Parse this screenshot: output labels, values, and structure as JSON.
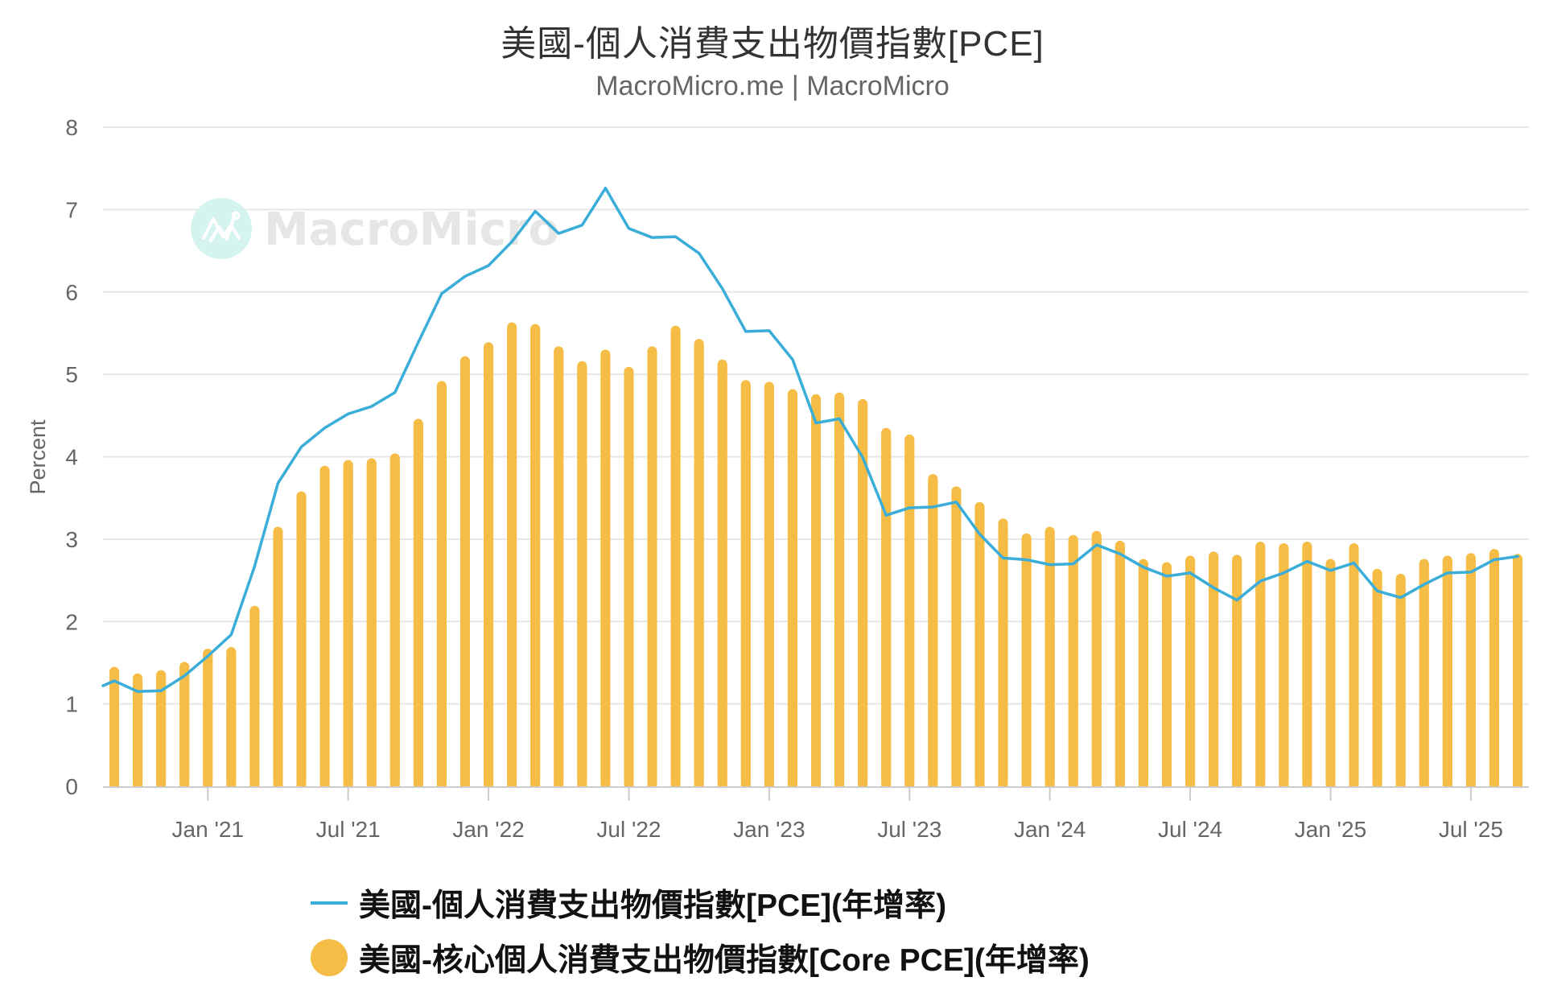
{
  "header": {
    "title": "美國-個人消費支出物價指數[PCE]",
    "subtitle": "MacroMicro.me | MacroMicro"
  },
  "watermark": {
    "text": "MacroMicro",
    "icon": "macromicro-logo-icon"
  },
  "colors": {
    "pce_line": "#3AADD9",
    "core_bar": "#F5BC46",
    "grid": "#E6E6E6",
    "axis_text": "#666666",
    "watermark_circle": "#D5F4EF",
    "watermark_text": "#E6E6E6"
  },
  "chart_data": {
    "type": "bar+line",
    "title": "美國-個人消費支出物價指數[PCE]",
    "subtitle": "MacroMicro.me | MacroMicro",
    "xlabel": "",
    "ylabel": "Percent",
    "ylim": [
      0,
      8
    ],
    "yticks": [
      0,
      1,
      2,
      3,
      4,
      5,
      6,
      7,
      8
    ],
    "grid": true,
    "legend_position": "bottom",
    "xtick_labels": [
      "Jan '21",
      "Jul '21",
      "Jan '22",
      "Jul '22",
      "Jan '23",
      "Jul '23",
      "Jan '24",
      "Jul '24",
      "Jan '25",
      "Jul '25"
    ],
    "xtick_index": [
      4,
      10,
      16,
      22,
      28,
      34,
      40,
      46,
      52,
      58
    ],
    "categories": [
      "2020-09",
      "2020-10",
      "2020-11",
      "2020-12",
      "2021-01",
      "2021-02",
      "2021-03",
      "2021-04",
      "2021-05",
      "2021-06",
      "2021-07",
      "2021-08",
      "2021-09",
      "2021-10",
      "2021-11",
      "2021-12",
      "2022-01",
      "2022-02",
      "2022-03",
      "2022-04",
      "2022-05",
      "2022-06",
      "2022-07",
      "2022-08",
      "2022-09",
      "2022-10",
      "2022-11",
      "2022-12",
      "2023-01",
      "2023-02",
      "2023-03",
      "2023-04",
      "2023-05",
      "2023-06",
      "2023-07",
      "2023-08",
      "2023-09",
      "2023-10",
      "2023-11",
      "2023-12",
      "2024-01",
      "2024-02",
      "2024-03",
      "2024-04",
      "2024-05",
      "2024-06",
      "2024-07",
      "2024-08",
      "2024-09",
      "2024-10",
      "2024-11",
      "2024-12",
      "2025-01",
      "2025-02",
      "2025-03",
      "2025-04",
      "2025-05",
      "2025-06",
      "2025-07",
      "2025-08",
      "2025-09"
    ],
    "line_start_value": 1.22,
    "series": [
      {
        "name": "美國-個人消費支出物價指數[PCE](年增率)",
        "type": "line",
        "values": [
          1.28,
          1.15,
          1.16,
          1.34,
          1.58,
          1.84,
          2.67,
          3.68,
          4.12,
          4.35,
          4.52,
          4.61,
          4.78,
          5.39,
          5.98,
          6.19,
          6.32,
          6.61,
          6.98,
          6.71,
          6.81,
          7.26,
          6.77,
          6.66,
          6.67,
          6.47,
          6.04,
          5.52,
          5.53,
          5.18,
          4.41,
          4.46,
          3.99,
          3.29,
          3.38,
          3.39,
          3.45,
          3.06,
          2.77,
          2.75,
          2.69,
          2.7,
          2.93,
          2.82,
          2.66,
          2.55,
          2.59,
          2.41,
          2.26,
          2.49,
          2.59,
          2.73,
          2.62,
          2.71,
          2.37,
          2.29,
          2.45,
          2.59,
          2.6,
          2.75,
          2.79
        ]
      },
      {
        "name": "美國-核心個人消費支出物價指數[Core PCE](年增率)",
        "type": "bar",
        "values": [
          1.45,
          1.37,
          1.41,
          1.51,
          1.67,
          1.69,
          2.19,
          3.15,
          3.58,
          3.89,
          3.96,
          3.98,
          4.04,
          4.46,
          4.92,
          5.22,
          5.39,
          5.63,
          5.61,
          5.34,
          5.16,
          5.3,
          5.09,
          5.34,
          5.59,
          5.43,
          5.18,
          4.93,
          4.91,
          4.82,
          4.76,
          4.78,
          4.7,
          4.35,
          4.27,
          3.79,
          3.64,
          3.45,
          3.25,
          3.07,
          3.15,
          3.05,
          3.1,
          2.98,
          2.76,
          2.72,
          2.8,
          2.85,
          2.81,
          2.97,
          2.95,
          2.97,
          2.76,
          2.95,
          2.64,
          2.58,
          2.76,
          2.8,
          2.83,
          2.88,
          2.82
        ]
      }
    ]
  },
  "legend": {
    "items": [
      {
        "label": "美國-個人消費支出物價指數[PCE](年增率)",
        "symbol": "line-symbol"
      },
      {
        "label": "美國-核心個人消費支出物價指數[Core PCE](年增率)",
        "symbol": "dot-symbol"
      }
    ]
  }
}
